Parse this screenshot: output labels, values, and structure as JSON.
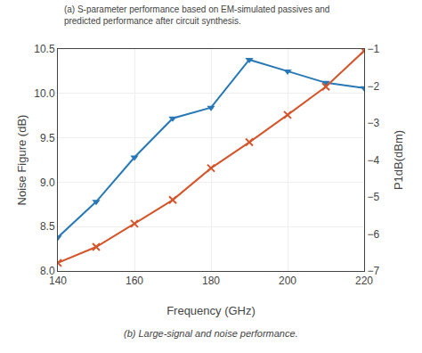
{
  "chart_data": {
    "type": "line",
    "title": "(a) S-parameter performance based on EM-simulated passives and\npredicted performance after circuit synthesis.",
    "caption": "(b) Large-signal and noise performance.",
    "x_label": "Frequency (GHz)",
    "y_label": "Noise Figure (dB)",
    "y2_label": "P1dB(dBm)",
    "x": [
      140,
      150,
      160,
      170,
      180,
      190,
      200,
      210,
      220
    ],
    "series": [
      {
        "color": "#2878b5",
        "marker": "triangle-down",
        "values": [
          8.38,
          8.78,
          9.28,
          9.72,
          9.84,
          10.38,
          10.25,
          10.12,
          10.06
        ]
      },
      {
        "color": "#d4552b",
        "marker": "x",
        "axis": "y2",
        "values": [
          -6.78,
          -6.35,
          -5.72,
          -5.08,
          -4.22,
          -3.52,
          -2.78,
          -2.02,
          -1.05
        ]
      }
    ],
    "xlim": [
      140,
      220
    ],
    "xticks": [
      140,
      160,
      180,
      200,
      220
    ],
    "ylim": [
      8.0,
      10.5
    ],
    "yticks": [
      {
        "value": 8.0,
        "label": "8.0"
      },
      {
        "value": 8.5,
        "label": "8.5"
      },
      {
        "value": 9.0,
        "label": "9.0"
      },
      {
        "value": 9.5,
        "label": "9.5"
      },
      {
        "value": 10.0,
        "label": "10.0"
      },
      {
        "value": 10.5,
        "label": "10.5"
      }
    ],
    "y2lim": [
      -7,
      -1
    ],
    "y2ticks": [
      {
        "value": -7,
        "label": "−7"
      },
      {
        "value": -6,
        "label": "−6"
      },
      {
        "value": -5,
        "label": "−5"
      },
      {
        "value": -4,
        "label": "−4"
      },
      {
        "value": -3,
        "label": "−3"
      },
      {
        "value": -2,
        "label": "−2"
      },
      {
        "value": -1,
        "label": "−1"
      }
    ],
    "grid": true
  }
}
